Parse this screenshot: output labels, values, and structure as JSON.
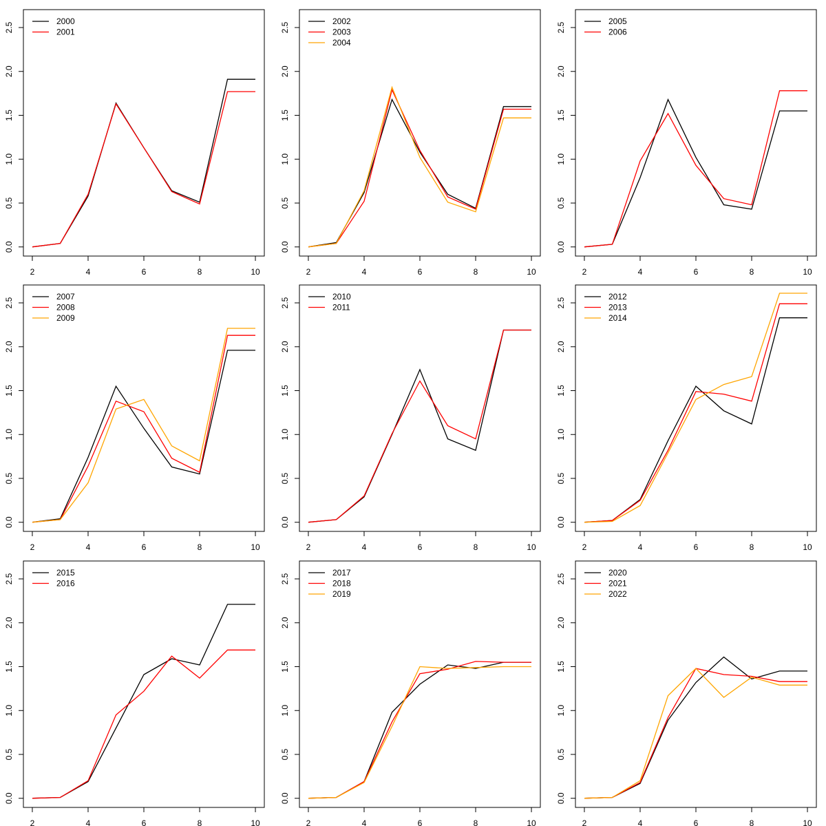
{
  "colors": {
    "series": [
      "#000000",
      "#ff0000",
      "#ffa500"
    ],
    "axis": "#000000"
  },
  "chart_data": [
    {
      "type": "line",
      "title": "",
      "xlabel": "",
      "ylabel": "",
      "x": [
        2,
        3,
        4,
        5,
        6,
        7,
        8,
        9,
        10
      ],
      "xlim": [
        2,
        10
      ],
      "ylim": [
        0,
        2.6
      ],
      "x_ticks": [
        2,
        4,
        6,
        8,
        10
      ],
      "y_ticks": [
        0,
        0.5,
        1,
        1.5,
        2,
        2.5
      ],
      "x_tick_labels": [
        "2",
        "4",
        "6",
        "8",
        "10"
      ],
      "y_tick_labels": [
        "0.0",
        "0.5",
        "1.0",
        "1.5",
        "2.0",
        "2.5"
      ],
      "grid": false,
      "legend": "top-left",
      "step_last": true,
      "series": [
        {
          "name": "2000",
          "values": [
            0,
            0.04,
            0.58,
            1.64,
            1.13,
            0.64,
            0.51,
            1.91,
            1.91
          ]
        },
        {
          "name": "2001",
          "values": [
            0,
            0.04,
            0.6,
            1.63,
            1.13,
            0.63,
            0.49,
            1.77,
            1.77
          ]
        }
      ]
    },
    {
      "type": "line",
      "title": "",
      "xlabel": "",
      "ylabel": "",
      "x": [
        2,
        3,
        4,
        5,
        6,
        7,
        8,
        9,
        10
      ],
      "xlim": [
        2,
        10
      ],
      "ylim": [
        0,
        2.6
      ],
      "x_ticks": [
        2,
        4,
        6,
        8,
        10
      ],
      "y_ticks": [
        0,
        0.5,
        1,
        1.5,
        2,
        2.5
      ],
      "x_tick_labels": [
        "2",
        "4",
        "6",
        "8",
        "10"
      ],
      "y_tick_labels": [
        "0.0",
        "0.5",
        "1.0",
        "1.5",
        "2.0",
        "2.5"
      ],
      "grid": false,
      "legend": "top-left",
      "step_last": true,
      "series": [
        {
          "name": "2002",
          "values": [
            0,
            0.05,
            0.62,
            1.68,
            1.08,
            0.6,
            0.44,
            1.6,
            1.6
          ]
        },
        {
          "name": "2003",
          "values": [
            0,
            0.04,
            0.52,
            1.79,
            1.1,
            0.57,
            0.43,
            1.57,
            1.57
          ]
        },
        {
          "name": "2004",
          "values": [
            0,
            0.04,
            0.64,
            1.82,
            1.02,
            0.51,
            0.4,
            1.47,
            1.47
          ]
        }
      ]
    },
    {
      "type": "line",
      "title": "",
      "xlabel": "",
      "ylabel": "",
      "x": [
        2,
        3,
        4,
        5,
        6,
        7,
        8,
        9,
        10
      ],
      "xlim": [
        2,
        10
      ],
      "ylim": [
        0,
        2.6
      ],
      "x_ticks": [
        2,
        4,
        6,
        8,
        10
      ],
      "y_ticks": [
        0,
        0.5,
        1,
        1.5,
        2,
        2.5
      ],
      "x_tick_labels": [
        "2",
        "4",
        "6",
        "8",
        "10"
      ],
      "y_tick_labels": [
        "0.0",
        "0.5",
        "1.0",
        "1.5",
        "2.0",
        "2.5"
      ],
      "grid": false,
      "legend": "top-left",
      "step_last": true,
      "series": [
        {
          "name": "2005",
          "values": [
            0,
            0.03,
            0.79,
            1.68,
            1.02,
            0.48,
            0.43,
            1.55,
            1.55
          ]
        },
        {
          "name": "2006",
          "values": [
            0,
            0.03,
            0.98,
            1.52,
            0.93,
            0.55,
            0.48,
            1.78,
            1.78
          ]
        }
      ]
    },
    {
      "type": "line",
      "title": "",
      "xlabel": "",
      "ylabel": "",
      "x": [
        2,
        3,
        4,
        5,
        6,
        7,
        8,
        9,
        10
      ],
      "xlim": [
        2,
        10
      ],
      "ylim": [
        0,
        2.6
      ],
      "x_ticks": [
        2,
        4,
        6,
        8,
        10
      ],
      "y_ticks": [
        0,
        0.5,
        1,
        1.5,
        2,
        2.5
      ],
      "x_tick_labels": [
        "2",
        "4",
        "6",
        "8",
        "10"
      ],
      "y_tick_labels": [
        "0.0",
        "0.5",
        "1.0",
        "1.5",
        "2.0",
        "2.5"
      ],
      "grid": false,
      "legend": "top-left",
      "step_last": true,
      "series": [
        {
          "name": "2007",
          "values": [
            0,
            0.04,
            0.74,
            1.55,
            1.07,
            0.63,
            0.55,
            1.96,
            1.96
          ]
        },
        {
          "name": "2008",
          "values": [
            0,
            0.03,
            0.64,
            1.38,
            1.26,
            0.73,
            0.57,
            2.13,
            2.13
          ]
        },
        {
          "name": "2009",
          "values": [
            0,
            0.03,
            0.45,
            1.29,
            1.4,
            0.87,
            0.7,
            2.21,
            2.21
          ]
        }
      ]
    },
    {
      "type": "line",
      "title": "",
      "xlabel": "",
      "ylabel": "",
      "x": [
        2,
        3,
        4,
        5,
        6,
        7,
        8,
        9,
        10
      ],
      "xlim": [
        2,
        10
      ],
      "ylim": [
        0,
        2.6
      ],
      "x_ticks": [
        2,
        4,
        6,
        8,
        10
      ],
      "y_ticks": [
        0,
        0.5,
        1,
        1.5,
        2,
        2.5
      ],
      "x_tick_labels": [
        "2",
        "4",
        "6",
        "8",
        "10"
      ],
      "y_tick_labels": [
        "0.0",
        "0.5",
        "1.0",
        "1.5",
        "2.0",
        "2.5"
      ],
      "grid": false,
      "legend": "top-left",
      "step_last": true,
      "series": [
        {
          "name": "2010",
          "values": [
            0,
            0.03,
            0.29,
            1.0,
            1.74,
            0.95,
            0.82,
            2.19,
            2.19
          ]
        },
        {
          "name": "2011",
          "values": [
            0,
            0.03,
            0.3,
            1.01,
            1.61,
            1.1,
            0.95,
            2.19,
            2.19
          ]
        }
      ]
    },
    {
      "type": "line",
      "title": "",
      "xlabel": "",
      "ylabel": "",
      "x": [
        2,
        3,
        4,
        5,
        6,
        7,
        8,
        9,
        10
      ],
      "xlim": [
        2,
        10
      ],
      "ylim": [
        0,
        2.6
      ],
      "x_ticks": [
        2,
        4,
        6,
        8,
        10
      ],
      "y_ticks": [
        0,
        0.5,
        1,
        1.5,
        2,
        2.5
      ],
      "x_tick_labels": [
        "2",
        "4",
        "6",
        "8",
        "10"
      ],
      "y_tick_labels": [
        "0.0",
        "0.5",
        "1.0",
        "1.5",
        "2.0",
        "2.5"
      ],
      "grid": false,
      "legend": "top-left",
      "step_last": true,
      "series": [
        {
          "name": "2012",
          "values": [
            0,
            0.02,
            0.26,
            0.93,
            1.55,
            1.27,
            1.12,
            2.33,
            2.33
          ]
        },
        {
          "name": "2013",
          "values": [
            0,
            0.02,
            0.25,
            0.82,
            1.49,
            1.46,
            1.38,
            2.49,
            2.49
          ]
        },
        {
          "name": "2014",
          "values": [
            0,
            0.01,
            0.19,
            0.79,
            1.4,
            1.57,
            1.66,
            2.61,
            2.61
          ]
        }
      ]
    },
    {
      "type": "line",
      "title": "",
      "xlabel": "",
      "ylabel": "",
      "x": [
        2,
        3,
        4,
        5,
        6,
        7,
        8,
        9,
        10
      ],
      "xlim": [
        2,
        10
      ],
      "ylim": [
        0,
        2.6
      ],
      "x_ticks": [
        2,
        4,
        6,
        8,
        10
      ],
      "y_ticks": [
        0,
        0.5,
        1,
        1.5,
        2,
        2.5
      ],
      "x_tick_labels": [
        "2",
        "4",
        "6",
        "8",
        "10"
      ],
      "y_tick_labels": [
        "0.0",
        "0.5",
        "1.0",
        "1.5",
        "2.0",
        "2.5"
      ],
      "grid": false,
      "legend": "top-left",
      "step_last": true,
      "series": [
        {
          "name": "2015",
          "values": [
            0,
            0.01,
            0.19,
            0.8,
            1.41,
            1.59,
            1.52,
            2.21,
            2.21
          ]
        },
        {
          "name": "2016",
          "values": [
            0,
            0.01,
            0.2,
            0.95,
            1.22,
            1.62,
            1.37,
            1.69,
            1.69
          ]
        }
      ]
    },
    {
      "type": "line",
      "title": "",
      "xlabel": "",
      "ylabel": "",
      "x": [
        2,
        3,
        4,
        5,
        6,
        7,
        8,
        9,
        10
      ],
      "xlim": [
        2,
        10
      ],
      "ylim": [
        0,
        2.6
      ],
      "x_ticks": [
        2,
        4,
        6,
        8,
        10
      ],
      "y_ticks": [
        0,
        0.5,
        1,
        1.5,
        2,
        2.5
      ],
      "x_tick_labels": [
        "2",
        "4",
        "6",
        "8",
        "10"
      ],
      "y_tick_labels": [
        "0.0",
        "0.5",
        "1.0",
        "1.5",
        "2.0",
        "2.5"
      ],
      "grid": false,
      "legend": "top-left",
      "step_last": true,
      "series": [
        {
          "name": "2017",
          "values": [
            0,
            0.01,
            0.19,
            0.98,
            1.3,
            1.52,
            1.48,
            1.55,
            1.55
          ]
        },
        {
          "name": "2018",
          "values": [
            0,
            0.01,
            0.19,
            0.87,
            1.42,
            1.47,
            1.56,
            1.55,
            1.55
          ]
        },
        {
          "name": "2019",
          "values": [
            0,
            0.01,
            0.18,
            0.82,
            1.5,
            1.48,
            1.49,
            1.5,
            1.5
          ]
        }
      ]
    },
    {
      "type": "line",
      "title": "",
      "xlabel": "",
      "ylabel": "",
      "x": [
        2,
        3,
        4,
        5,
        6,
        7,
        8,
        9,
        10
      ],
      "xlim": [
        2,
        10
      ],
      "ylim": [
        0,
        2.6
      ],
      "x_ticks": [
        2,
        4,
        6,
        8,
        10
      ],
      "y_ticks": [
        0,
        0.5,
        1,
        1.5,
        2,
        2.5
      ],
      "x_tick_labels": [
        "2",
        "4",
        "6",
        "8",
        "10"
      ],
      "y_tick_labels": [
        "0.0",
        "0.5",
        "1.0",
        "1.5",
        "2.0",
        "2.5"
      ],
      "grid": false,
      "legend": "top-left",
      "step_last": true,
      "series": [
        {
          "name": "2020",
          "values": [
            0,
            0.01,
            0.17,
            0.89,
            1.32,
            1.61,
            1.36,
            1.45,
            1.45
          ]
        },
        {
          "name": "2021",
          "values": [
            0,
            0.01,
            0.18,
            0.92,
            1.48,
            1.41,
            1.39,
            1.33,
            1.33
          ]
        },
        {
          "name": "2022",
          "values": [
            0,
            0.01,
            0.2,
            1.17,
            1.48,
            1.15,
            1.38,
            1.29,
            1.29
          ]
        }
      ]
    }
  ]
}
